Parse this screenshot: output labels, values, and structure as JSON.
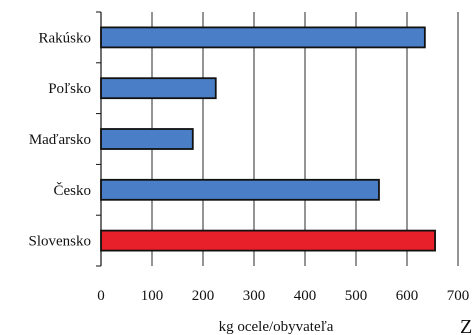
{
  "chart_data": {
    "type": "bar",
    "orientation": "horizontal",
    "categories": [
      "Rakúsko",
      "Poľsko",
      "Maďarsko",
      "Česko",
      "Slovensko"
    ],
    "values": [
      635,
      225,
      180,
      545,
      655
    ],
    "highlight": "Slovensko",
    "xlabel": "kg ocele/obyvateľa",
    "xlim": [
      0,
      700
    ],
    "xticks": [
      0,
      100,
      200,
      300,
      400,
      500,
      600,
      700
    ],
    "grid": "vertical",
    "colors": {
      "bar": "#4A7EC7",
      "highlight": "#E8202A",
      "outline": "#111111",
      "grid": "#111111"
    }
  },
  "corner_text": "Z"
}
